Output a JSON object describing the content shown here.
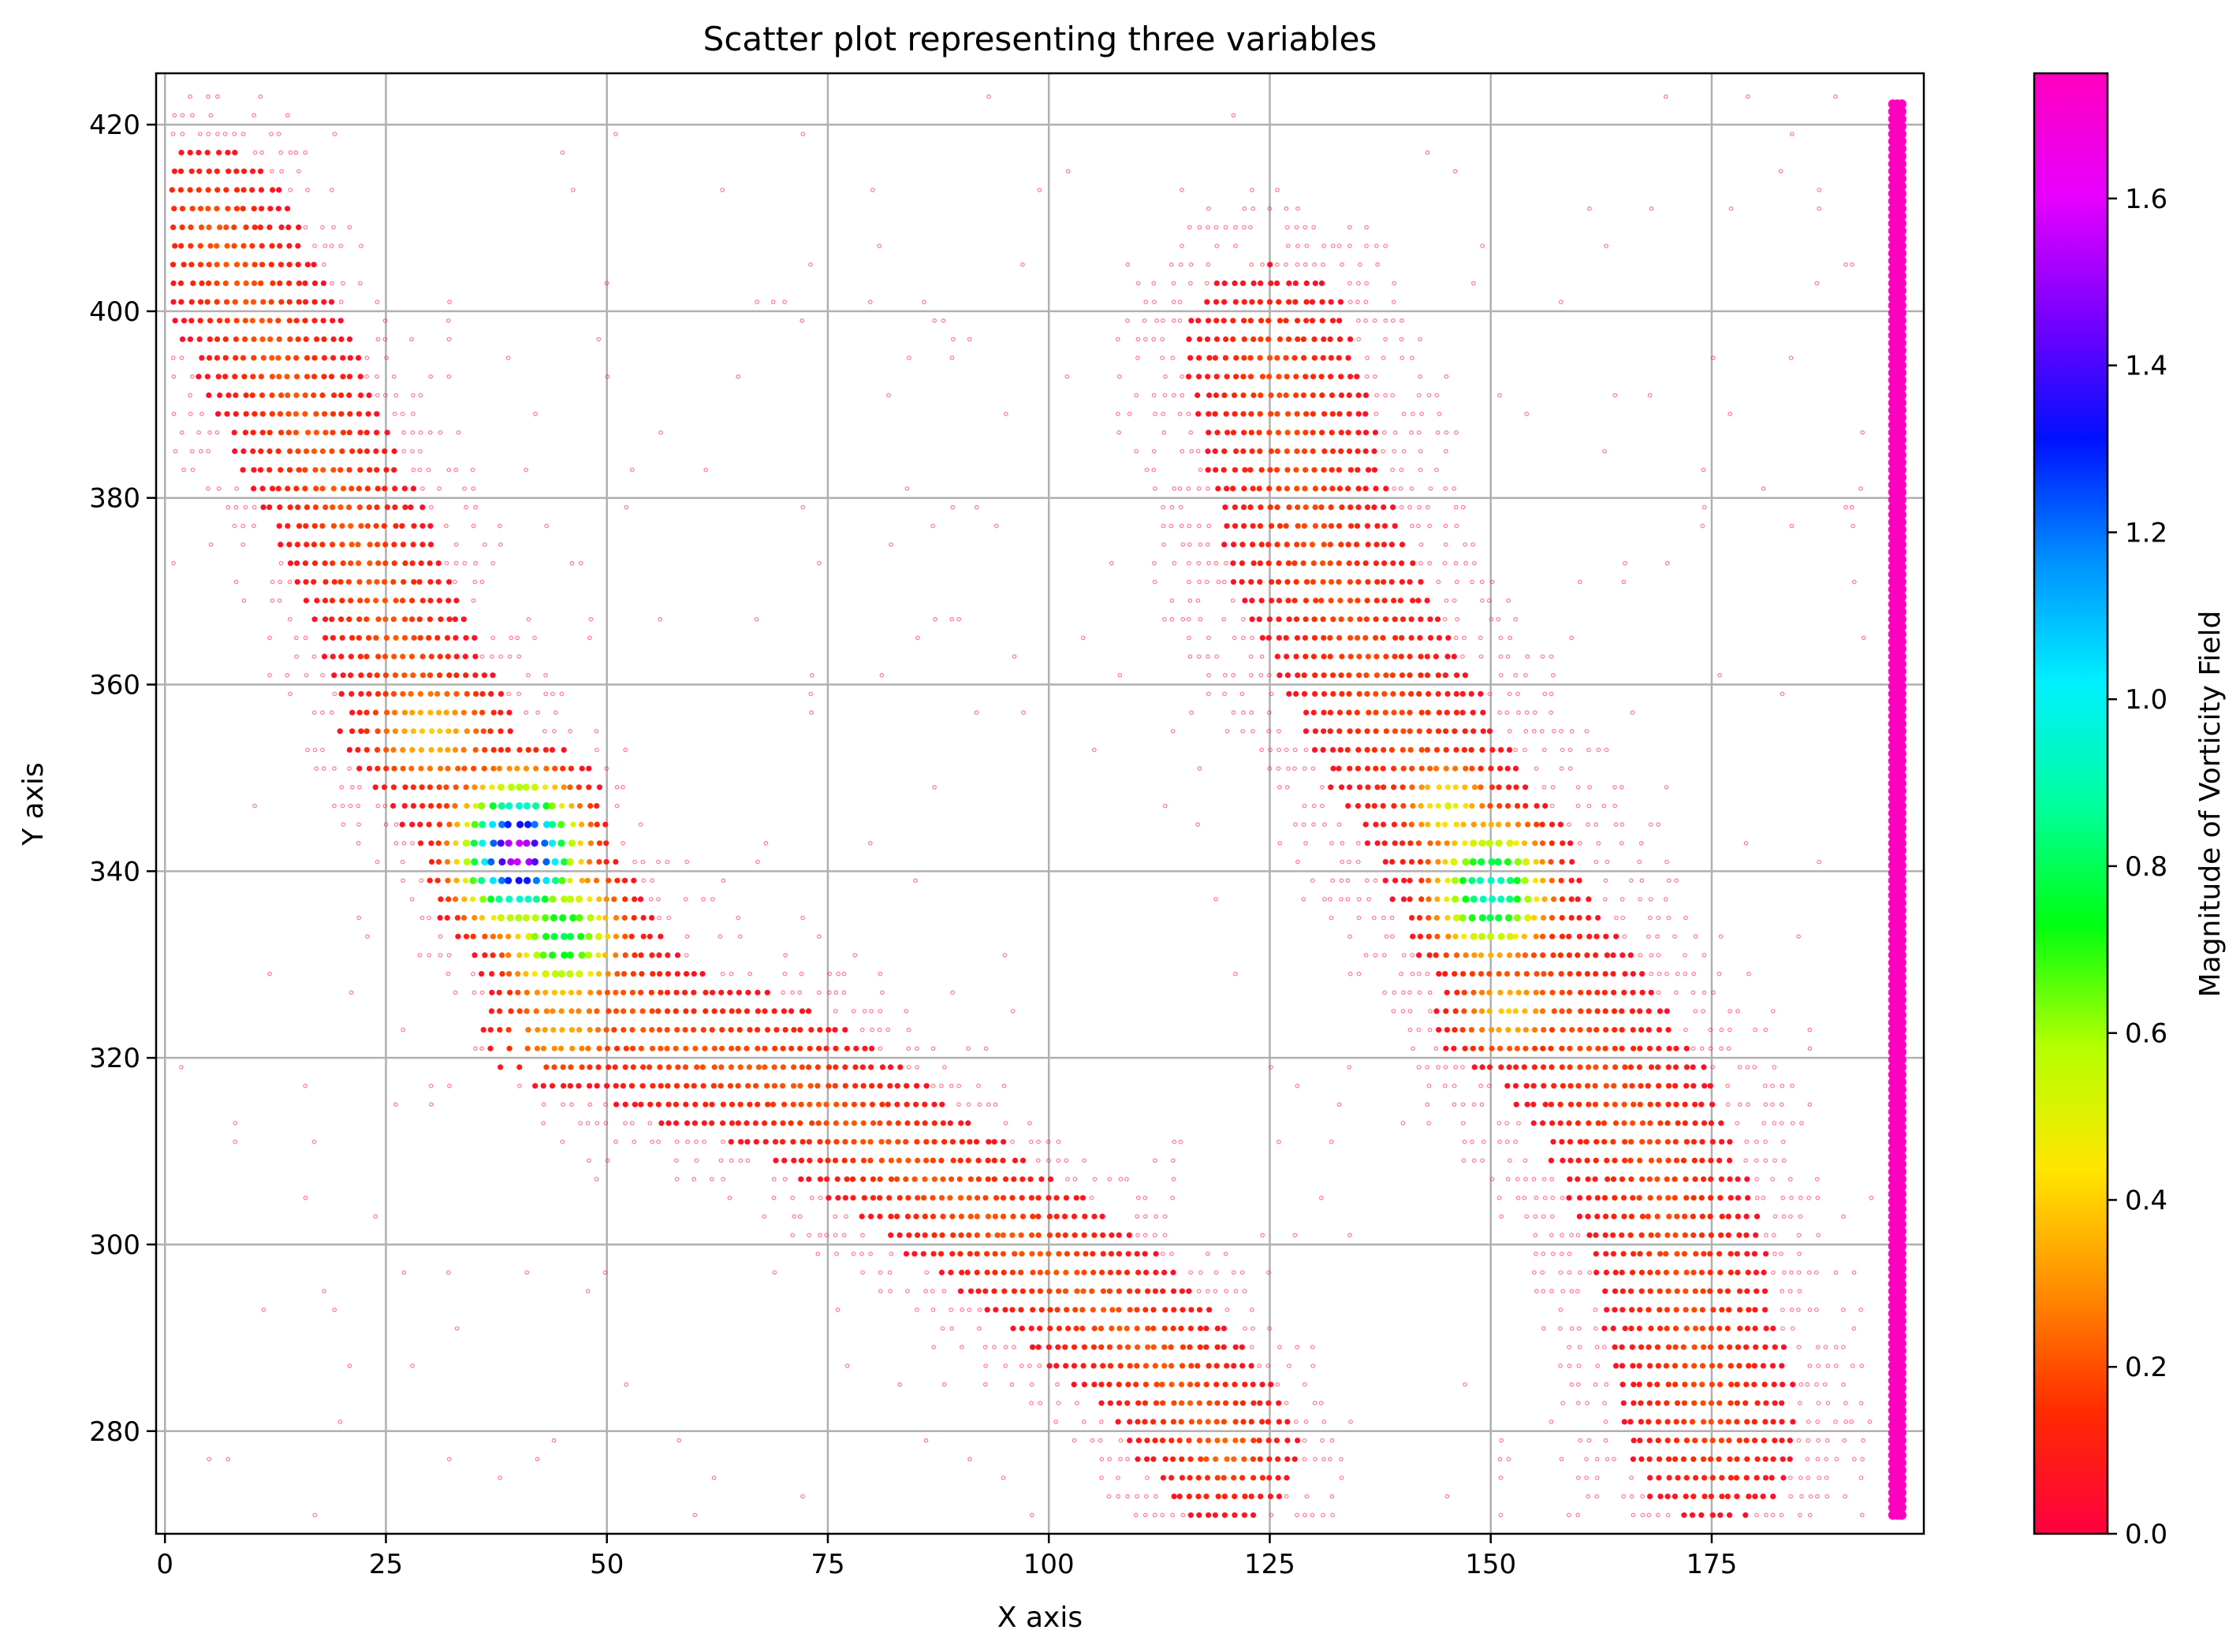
{
  "chart_data": {
    "type": "scatter",
    "title": "Scatter plot representing three variables",
    "xlabel": "X axis",
    "ylabel": "Y axis",
    "xlim": [
      -1,
      199
    ],
    "ylim": [
      269,
      425.5
    ],
    "xticks": [
      0,
      25,
      50,
      75,
      100,
      125,
      150,
      175
    ],
    "yticks": [
      280,
      300,
      320,
      340,
      360,
      380,
      400,
      420
    ],
    "grid": true,
    "colormap": "gist_rainbow",
    "colorbar": {
      "label": "Magnitude of Vorticity Field",
      "range": [
        0.0,
        1.75
      ],
      "ticks": [
        "0.0",
        "0.2",
        "0.4",
        "0.6",
        "0.8",
        "1.0",
        "1.2",
        "1.4",
        "1.6"
      ],
      "stops": [
        "#ff0040",
        "#ff2a00",
        "#ff8c00",
        "#ffe600",
        "#b5ff00",
        "#00ff10",
        "#00ffa0",
        "#00f0ff",
        "#0090ff",
        "#0010ff",
        "#7a00ff",
        "#e800ff",
        "#ff00bf"
      ]
    },
    "series": [
      {
        "description_free": true,
        "grid_spacing": 1,
        "clusters": [
          {
            "path": [
              [
                5,
                410
              ],
              [
                15,
                390
              ],
              [
                24,
                370
              ],
              [
                30,
                355
              ],
              [
                37,
                345
              ],
              [
                45,
                335
              ],
              [
                55,
                322
              ],
              [
                70,
                318
              ],
              [
                85,
                308
              ],
              [
                100,
                298
              ],
              [
                112,
                288
              ],
              [
                120,
                278
              ]
            ],
            "base_width": 10,
            "shape": "ridge"
          },
          {
            "center": [
              40,
              342
            ],
            "radius": [
              6,
              7
            ],
            "peak": 1.6
          },
          {
            "center": [
              45,
              333
            ],
            "radius": [
              6,
              7
            ],
            "peak": 0.8
          },
          {
            "center": [
              30,
              355
            ],
            "radius": [
              7,
              6
            ],
            "peak": 0.4
          },
          {
            "center": [
              45,
              323
            ],
            "radius": [
              7,
              5
            ],
            "peak": 0.35
          },
          {
            "center": [
              120,
              278
            ],
            "radius": [
              5,
              5
            ],
            "peak": 0.25
          }
        ],
        "second_band": {
          "path": [
            [
              125,
              395
            ],
            [
              130,
              375
            ],
            [
              138,
              358
            ],
            [
              146,
              345
            ],
            [
              152,
              334
            ],
            [
              160,
              322
            ],
            [
              168,
              310
            ],
            [
              172,
              295
            ],
            [
              175,
              280
            ]
          ],
          "base_width": 14
        },
        "second_hotspots": [
          {
            "center": [
              150,
              338
            ],
            "radius": [
              6,
              7
            ],
            "peak": 0.95
          },
          {
            "center": [
              145,
              347
            ],
            "radius": [
              5,
              5
            ],
            "peak": 0.5
          },
          {
            "center": [
              152,
              325
            ],
            "radius": [
              6,
              5
            ],
            "peak": 0.4
          }
        ],
        "boundary_column": {
          "x": [
            195.5,
            196.5
          ],
          "y": [
            271,
            423
          ],
          "value": 1.75
        }
      }
    ]
  }
}
